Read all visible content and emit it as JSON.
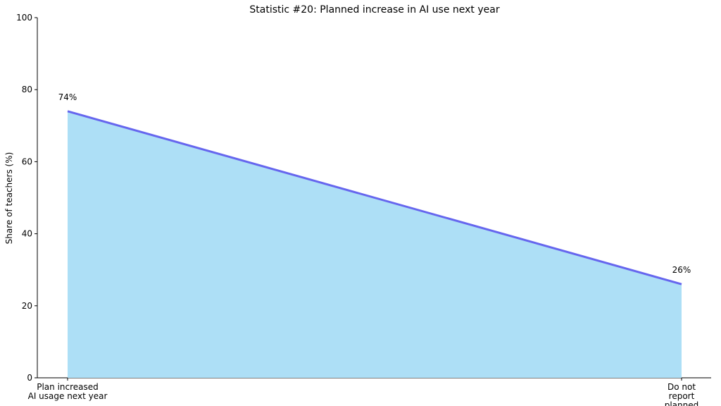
{
  "chart_data": {
    "type": "area",
    "title": "Statistic #20: Planned increase in AI use next year",
    "y_label": "Share of teachers (%)",
    "categories": [
      "Plan increased\nAI usage next year",
      "Do not report\nplanned increase"
    ],
    "values": [
      74,
      26
    ],
    "value_labels": [
      "74%",
      "26%"
    ],
    "line_color": "#6666ee",
    "fill_color": "#addff6",
    "ylim": [
      0,
      100
    ],
    "yticks": [
      0,
      20,
      40,
      60,
      80,
      100
    ],
    "grid": false
  }
}
